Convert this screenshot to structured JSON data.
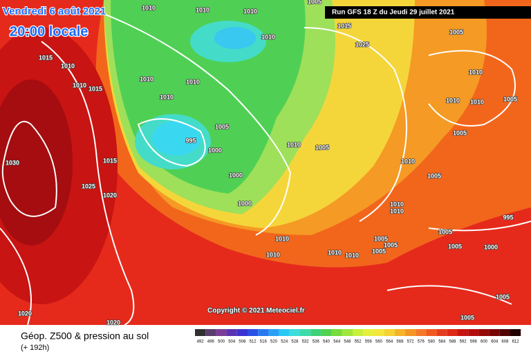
{
  "header": {
    "date": "Vendredi 6 août 2021",
    "time": "20:00 locale",
    "run": "Run GFS 18 Z du Jeudi 29 juillet 2021"
  },
  "copyright": "Copyright © 2021 Meteociel.fr",
  "legend": {
    "title": "Géop. Z500 & pression au sol",
    "lead": "(+ 192h)",
    "scale": [
      492,
      496,
      500,
      504,
      508,
      512,
      516,
      520,
      524,
      528,
      532,
      536,
      540,
      544,
      548,
      552,
      556,
      560,
      564,
      568,
      572,
      576,
      580,
      584,
      588,
      592,
      596,
      600,
      604,
      608,
      612
    ]
  },
  "isobar_labels": [
    1010,
    1010,
    1010,
    1005,
    1015,
    1025,
    1010,
    1005,
    1015,
    1010,
    1010,
    1015,
    1010,
    1010,
    1010,
    1005,
    995,
    1000,
    1000,
    1000,
    1010,
    1005,
    1015,
    1030,
    1025,
    1020,
    1010,
    1005,
    1010,
    1010,
    1010,
    1010,
    1010,
    1005,
    1005,
    995,
    1005,
    1005,
    1005,
    1005,
    1000,
    1005,
    1010,
    1010,
    1010,
    1010,
    1005,
    1005,
    1020,
    1020
  ]
}
